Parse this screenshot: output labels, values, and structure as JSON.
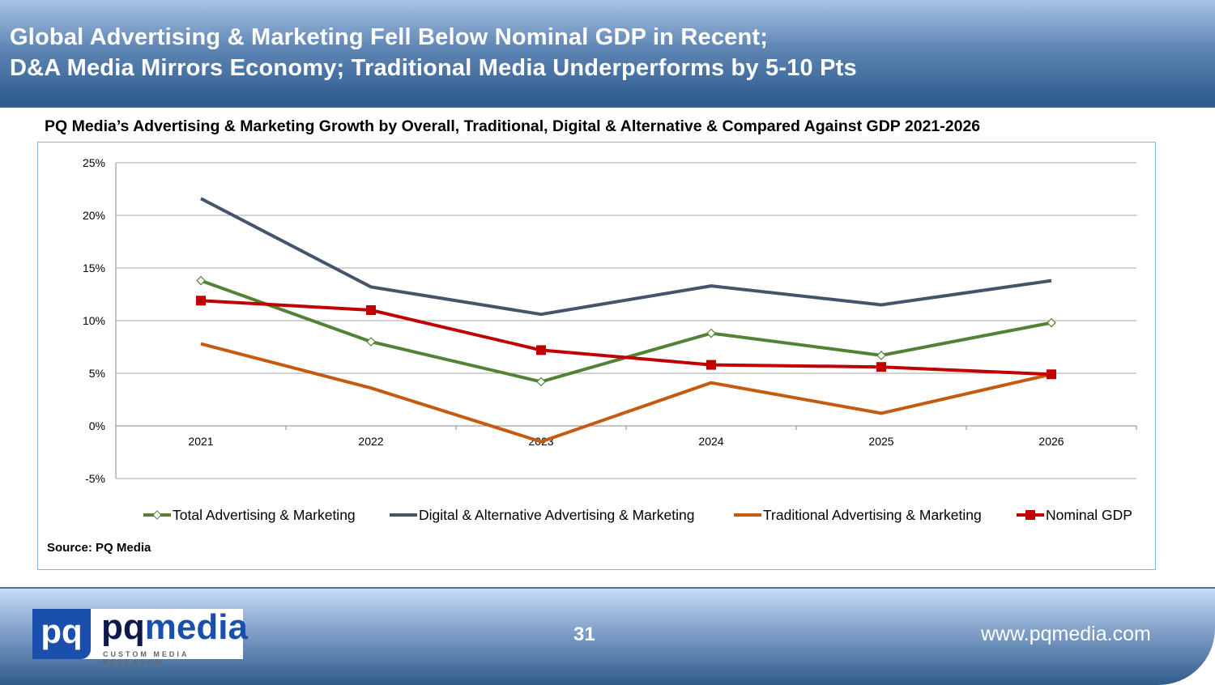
{
  "header": {
    "line1": "Global Advertising & Marketing Fell Below Nominal GDP in Recent;",
    "line2": "D&A Media Mirrors Economy; Traditional Media Underperforms by 5-10 Pts"
  },
  "chart_data": {
    "type": "line",
    "title": "PQ Media’s Advertising & Marketing Growth by Overall, Traditional, Digital & Alternative & Compared Against GDP 2021-2026",
    "categories": [
      "2021",
      "2022",
      "2023",
      "2024",
      "2025",
      "2026"
    ],
    "ylim": [
      -5,
      25
    ],
    "yticks": [
      25,
      20,
      15,
      10,
      5,
      0,
      -5
    ],
    "ytick_labels": [
      "25%",
      "20%",
      "15%",
      "10%",
      "5%",
      "0%",
      "-5%"
    ],
    "grid": true,
    "legend_position": "bottom",
    "series": [
      {
        "name": "Total Advertising & Marketing",
        "color": "#548235",
        "marker": "diamond-open",
        "values": [
          13.8,
          8.0,
          4.2,
          8.8,
          6.7,
          9.8
        ]
      },
      {
        "name": "Digital & Alternative Advertising & Marketing",
        "color": "#44546a",
        "marker": "none",
        "values": [
          21.6,
          13.2,
          10.6,
          13.3,
          11.5,
          13.8
        ]
      },
      {
        "name": "Traditional Advertising & Marketing",
        "color": "#c55a11",
        "marker": "none",
        "values": [
          7.8,
          3.6,
          -1.5,
          4.1,
          1.2,
          4.9
        ]
      },
      {
        "name": "Nominal GDP",
        "color": "#c00000",
        "marker": "square",
        "values": [
          11.9,
          11.0,
          7.2,
          5.8,
          5.6,
          4.9
        ]
      }
    ]
  },
  "source": "Source: PQ Media",
  "footer": {
    "page": "31",
    "url": "www.pqmedia.com",
    "logo_text": "pq pqmedia CUSTOM MEDIA RESEARCH"
  }
}
